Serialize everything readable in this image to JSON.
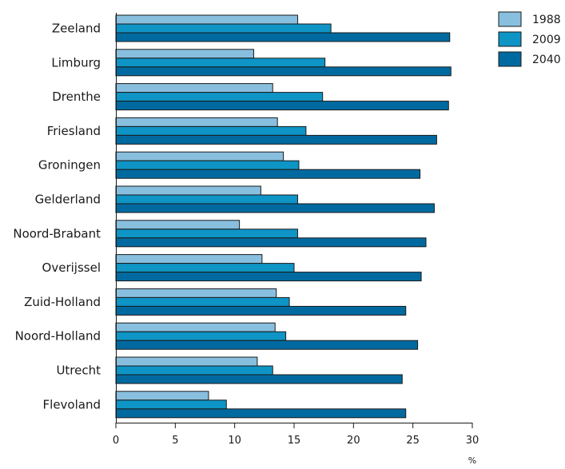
{
  "chart_data": {
    "type": "bar",
    "orientation": "horizontal",
    "title": "",
    "xlabel": "%",
    "ylabel": "",
    "xlim": [
      0,
      30
    ],
    "xticks": [
      0,
      5,
      10,
      15,
      20,
      25,
      30
    ],
    "grid": false,
    "legend_position": "top-right",
    "categories": [
      "Zeeland",
      "Limburg",
      "Drenthe",
      "Friesland",
      "Groningen",
      "Gelderland",
      "Noord-Brabant",
      "Overijssel",
      "Zuid-Holland",
      "Noord-Holland",
      "Utrecht",
      "Flevoland"
    ],
    "series": [
      {
        "name": "1988",
        "color": "#88bfdf",
        "values": [
          15.3,
          11.6,
          13.2,
          13.6,
          14.1,
          12.2,
          10.4,
          12.3,
          13.5,
          13.4,
          11.9,
          7.8
        ]
      },
      {
        "name": "2009",
        "color": "#0e94c5",
        "values": [
          18.1,
          17.6,
          17.4,
          16.0,
          15.4,
          15.3,
          15.3,
          15.0,
          14.6,
          14.3,
          13.2,
          9.3
        ]
      },
      {
        "name": "2040",
        "color": "#006aa0",
        "values": [
          28.1,
          28.2,
          28.0,
          27.0,
          25.6,
          26.8,
          26.1,
          25.7,
          24.4,
          25.4,
          24.1,
          24.4
        ]
      }
    ]
  }
}
